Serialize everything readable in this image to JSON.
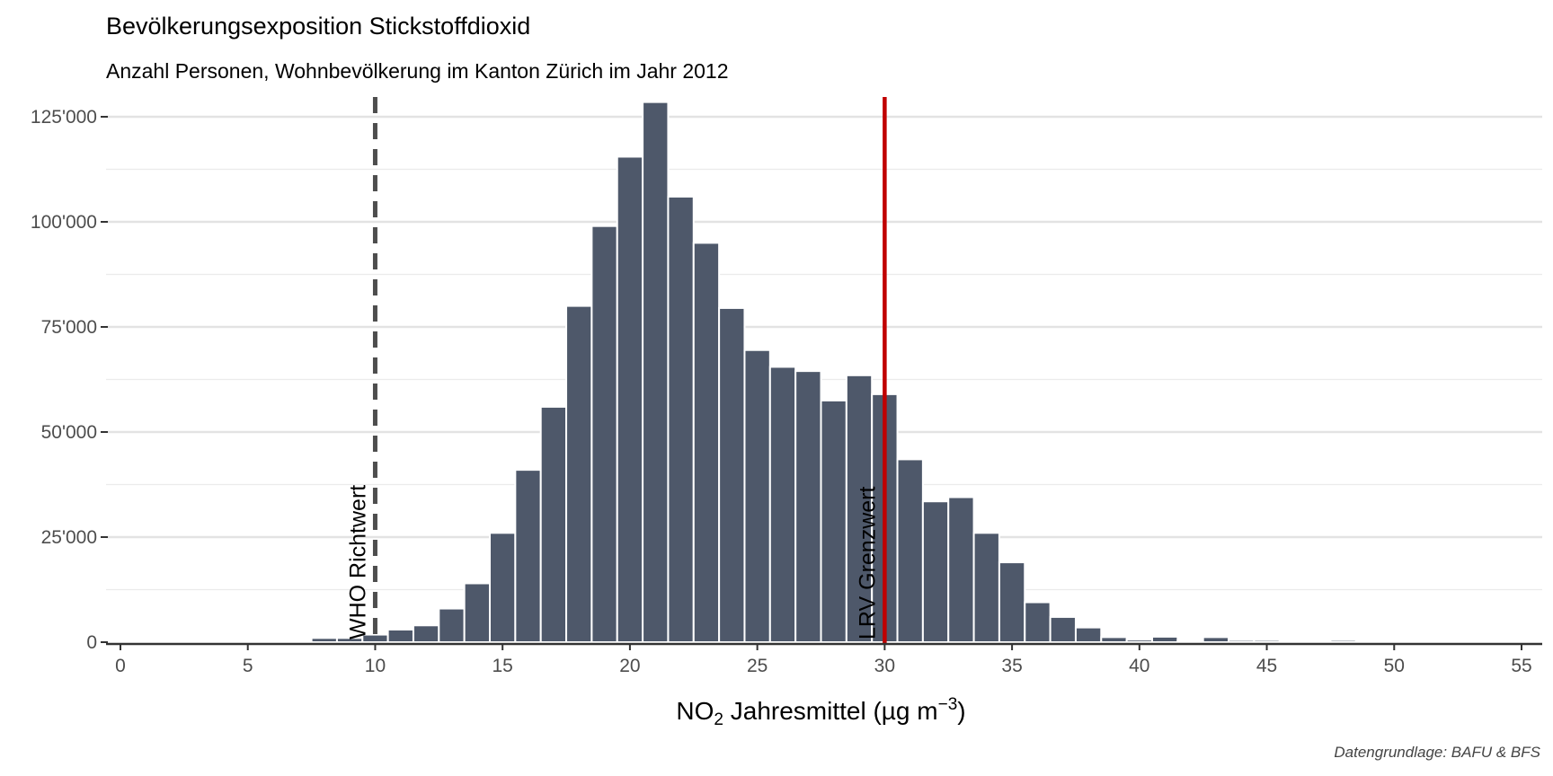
{
  "chart": {
    "title": "Bevölkerungsexposition Stickstoffdioxid",
    "subtitle": "Anzahl Personen, Wohnbevölkerung im Kanton Zürich im Jahr 2012",
    "caption": "Datengrundlage: BAFU & BFS",
    "xlabel_prefix": "NO",
    "xlabel_sub": "2",
    "xlabel_mid": " Jahresmittel (µg m",
    "xlabel_sup": "−3",
    "xlabel_suffix": ")"
  },
  "chart_data": {
    "type": "bar",
    "title": "Bevölkerungsexposition Stickstoffdioxid",
    "subtitle": "Anzahl Personen, Wohnbevölkerung im Kanton Zürich im Jahr 2012",
    "xlabel": "NO2 Jahresmittel (µg m−3)",
    "ylabel": "",
    "xlim": [
      -0.5,
      55.5
    ],
    "ylim": [
      0,
      130000
    ],
    "x_ticks": [
      0,
      5,
      10,
      15,
      20,
      25,
      30,
      35,
      40,
      45,
      50,
      55
    ],
    "y_ticks": [
      0,
      25000,
      50000,
      75000,
      100000,
      125000
    ],
    "y_tick_labels": [
      "0",
      "25'000",
      "50'000",
      "75'000",
      "100'000",
      "125'000"
    ],
    "bin_width": 1,
    "x": [
      7,
      8,
      9,
      10,
      11,
      12,
      13,
      14,
      15,
      16,
      17,
      18,
      19,
      20,
      21,
      22,
      23,
      24,
      25,
      26,
      27,
      28,
      29,
      30,
      31,
      32,
      33,
      34,
      35,
      36,
      37,
      38,
      39,
      40,
      41,
      42,
      43,
      44,
      45,
      46,
      47,
      48
    ],
    "values": [
      300,
      1000,
      1000,
      1800,
      3000,
      4000,
      8000,
      14000,
      26000,
      41000,
      56000,
      80000,
      99000,
      115500,
      128500,
      106000,
      95000,
      79500,
      69500,
      65500,
      64500,
      57500,
      63500,
      59000,
      43500,
      33500,
      34500,
      26000,
      19000,
      9500,
      6000,
      3500,
      1200,
      600,
      1300,
      400,
      1200,
      500,
      500,
      0,
      0,
      500
    ],
    "color": "#4E586A",
    "grid": true,
    "reference_lines": [
      {
        "x": 10,
        "label": "WHO Richtwert",
        "style": "dashed",
        "color": "#4d4d4d"
      },
      {
        "x": 30,
        "label": "LRV Grenzwert",
        "style": "solid",
        "color": "#C00000"
      }
    ],
    "caption": "Datengrundlage: BAFU & BFS"
  }
}
